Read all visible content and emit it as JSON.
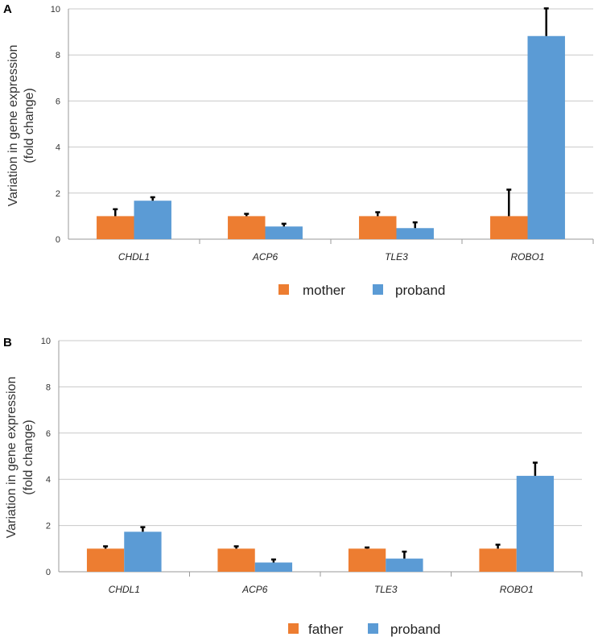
{
  "figure": {
    "panel_labels": [
      "A",
      "B"
    ]
  },
  "colors": {
    "first_series": "#ED7D31",
    "proband": "#5B9BD5"
  },
  "chart_data": [
    {
      "type": "bar",
      "panel": "A",
      "ylabel_line1": "Variation in gene expression",
      "ylabel_line2": "(fold change)",
      "xlabel": "",
      "ylim": [
        0,
        10
      ],
      "yticks": [
        "0",
        "2",
        "4",
        "6",
        "8",
        "10"
      ],
      "categories": [
        "CHDL1",
        "ACP6",
        "TLE3",
        "ROBO1"
      ],
      "series": [
        {
          "name": "mother",
          "values": [
            1.0,
            1.0,
            1.0,
            1.0
          ],
          "errors": [
            0.3,
            0.1,
            0.17,
            1.15
          ]
        },
        {
          "name": "proband",
          "values": [
            1.67,
            0.55,
            0.48,
            8.82
          ],
          "errors": [
            0.15,
            0.12,
            0.25,
            1.2
          ]
        }
      ],
      "legend_position": "bottom"
    },
    {
      "type": "bar",
      "panel": "B",
      "ylabel_line1": "Variation in gene expression",
      "ylabel_line2": "(fold change)",
      "xlabel": "",
      "ylim": [
        0,
        10
      ],
      "yticks": [
        "0",
        "2",
        "4",
        "6",
        "8",
        "10"
      ],
      "categories": [
        "CHDL1",
        "ACP6",
        "TLE3",
        "ROBO1"
      ],
      "series": [
        {
          "name": "father",
          "values": [
            1.0,
            1.0,
            1.0,
            1.0
          ],
          "errors": [
            0.1,
            0.1,
            0.05,
            0.17
          ]
        },
        {
          "name": "proband",
          "values": [
            1.73,
            0.4,
            0.57,
            4.15
          ],
          "errors": [
            0.2,
            0.13,
            0.3,
            0.57
          ]
        }
      ],
      "legend_position": "bottom"
    }
  ]
}
